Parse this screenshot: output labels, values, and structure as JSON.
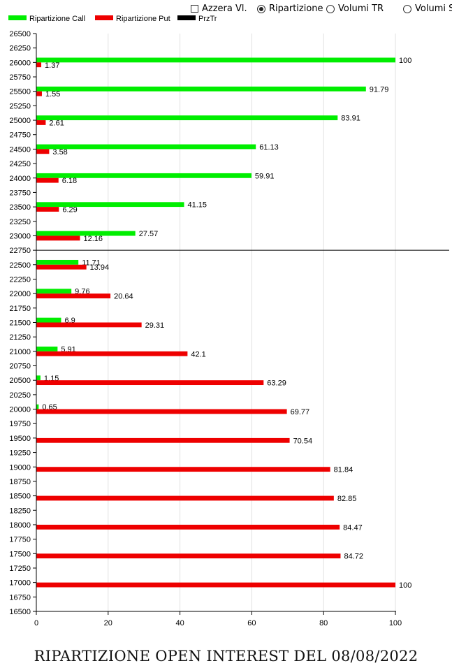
{
  "controls": {
    "reset_label": "Azzera Vl.",
    "radio1_label": "Ripartizione",
    "radio2_label": "Volumi TR",
    "radio3_label": "Volumi S"
  },
  "footer": {
    "title": "RIPARTIZIONE OPEN INTEREST DEL 08/08/2022"
  },
  "chart_data": {
    "type": "bar",
    "orientation": "horizontal",
    "legend": [
      "Ripartizione Call",
      "Ripartizione Put",
      "PrzTr"
    ],
    "legend_placement": "top-left",
    "colors": {
      "call": "#00ee00",
      "put": "#ee0000",
      "prztr": "#000000"
    },
    "ylim": [
      16500,
      26500
    ],
    "ytick_step": 250,
    "xlim": [
      0,
      100
    ],
    "xticks": [
      0,
      20,
      40,
      60,
      80,
      100
    ],
    "grid": "vertical",
    "reference_line": 22750,
    "categories": [
      26000,
      25500,
      25000,
      24500,
      24000,
      23500,
      23000,
      22500,
      22000,
      21500,
      21000,
      20500,
      20000,
      19500,
      19000,
      18500,
      18000,
      17500,
      17000
    ],
    "series": [
      {
        "name": "Ripartizione Call",
        "values": [
          100,
          91.79,
          83.91,
          61.13,
          59.91,
          41.15,
          27.57,
          11.71,
          9.76,
          6.9,
          5.91,
          1.15,
          0.65,
          null,
          null,
          null,
          null,
          null,
          null
        ]
      },
      {
        "name": "Ripartizione Put",
        "values": [
          1.37,
          1.55,
          2.61,
          3.58,
          6.18,
          6.29,
          12.16,
          13.94,
          20.64,
          29.31,
          42.1,
          63.29,
          69.77,
          70.54,
          81.84,
          82.85,
          84.47,
          84.72,
          100
        ]
      }
    ]
  }
}
